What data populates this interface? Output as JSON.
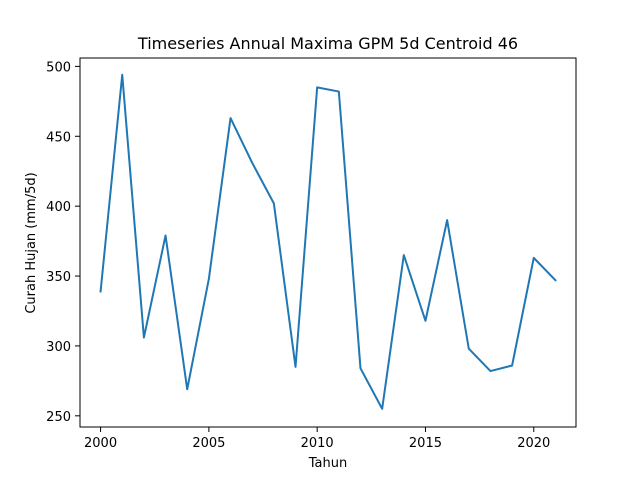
{
  "chart_data": {
    "type": "line",
    "title": "Timeseries Annual Maxima GPM 5d Centroid 46",
    "xlabel": "Tahun",
    "ylabel": "Curah Hujan (mm/5d)",
    "xlim": [
      1999.05,
      2021.95
    ],
    "ylim": [
      242.0,
      506.0
    ],
    "xticks": [
      2000,
      2005,
      2010,
      2015,
      2020
    ],
    "yticks": [
      250,
      300,
      350,
      400,
      450,
      500
    ],
    "grid": false,
    "line_color": "#1f77b4",
    "series": [
      {
        "x": [
          2000,
          2001,
          2002,
          2003,
          2004,
          2005,
          2006,
          2007,
          2008,
          2009,
          2010,
          2011,
          2012,
          2013,
          2014,
          2015,
          2016,
          2017,
          2018,
          2019,
          2020,
          2021
        ],
        "values": [
          339,
          494,
          306,
          379,
          269,
          348,
          463,
          431,
          402,
          285,
          485,
          482,
          284,
          255,
          365,
          318,
          390,
          298,
          282,
          286,
          363,
          347
        ]
      }
    ]
  }
}
